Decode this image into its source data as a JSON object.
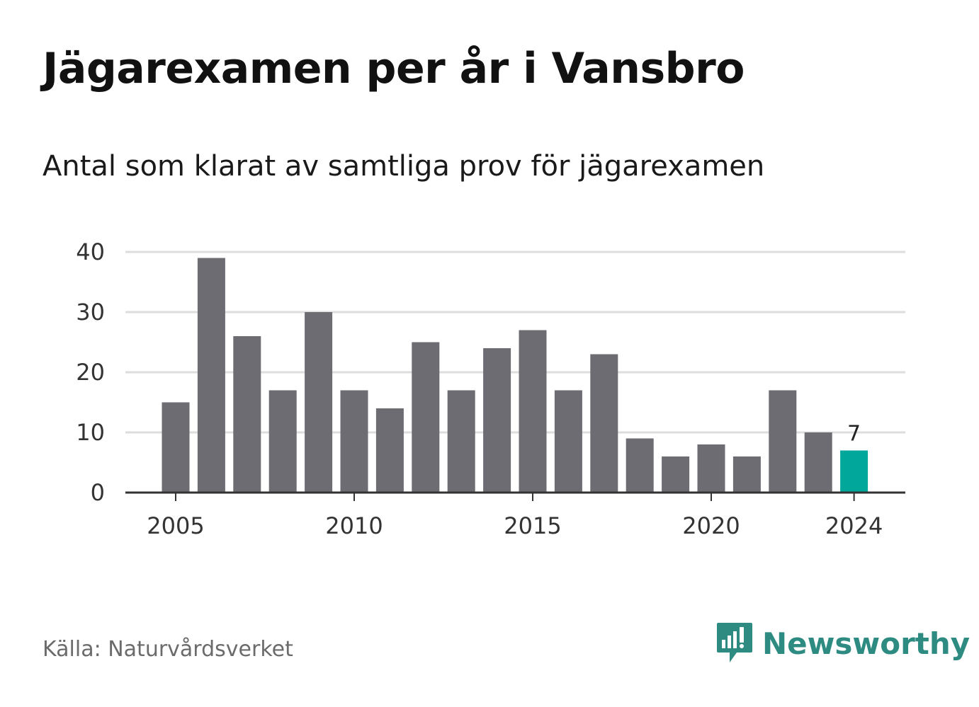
{
  "header": {
    "title": "Jägarexamen per år i Vansbro",
    "subtitle": "Antal som klarat av samtliga prov för jägarexamen"
  },
  "footer": {
    "source": "Källa: Naturvårdsverket",
    "brand": "Newsworthy"
  },
  "colors": {
    "bar": "#6d6c72",
    "highlight": "#00a79a",
    "grid": "#dddddd",
    "axis": "#333333",
    "brand": "#2e8b82"
  },
  "chart_data": {
    "type": "bar",
    "x": [
      2005,
      2006,
      2007,
      2008,
      2009,
      2010,
      2011,
      2012,
      2013,
      2014,
      2015,
      2016,
      2017,
      2018,
      2019,
      2020,
      2021,
      2022,
      2023,
      2024
    ],
    "values": [
      15,
      39,
      26,
      17,
      30,
      17,
      14,
      25,
      17,
      24,
      27,
      17,
      23,
      9,
      6,
      8,
      6,
      17,
      10,
      7
    ],
    "highlight_index": 19,
    "highlight_label": "7",
    "ylim": [
      0,
      40
    ],
    "yticks": [
      0,
      10,
      20,
      30,
      40
    ],
    "xticks": [
      "2005",
      "2010",
      "2015",
      "2020",
      "2024"
    ],
    "grid": true
  }
}
